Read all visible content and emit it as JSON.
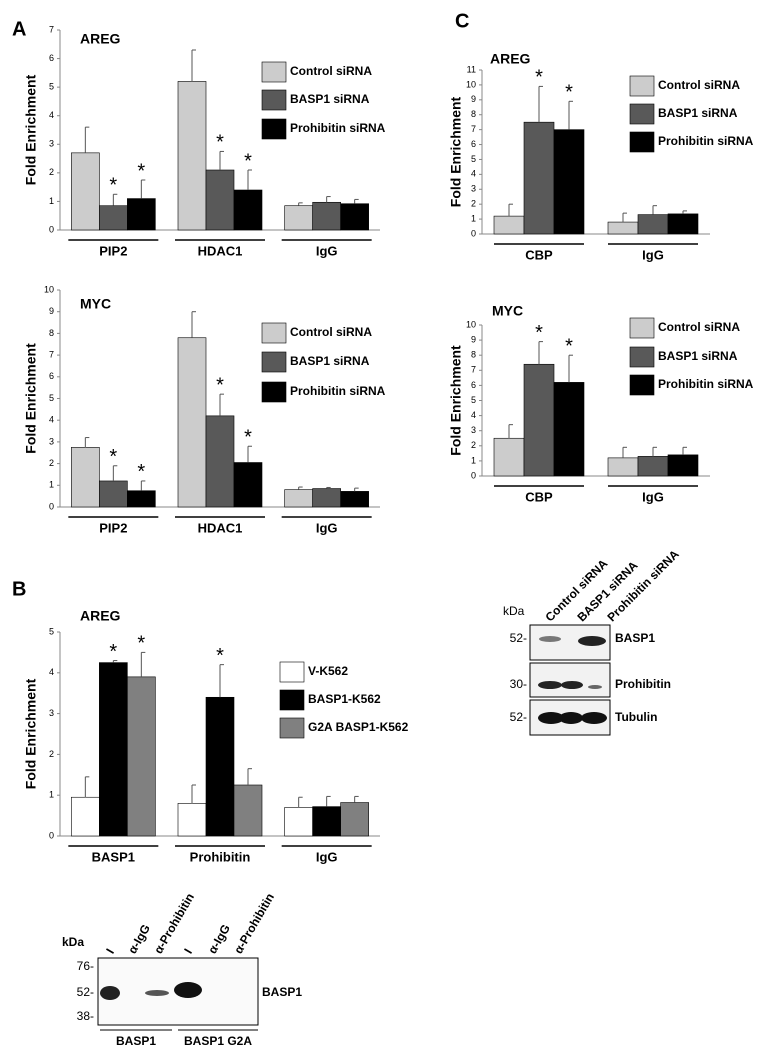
{
  "panels": [
    "A",
    "B",
    "C"
  ],
  "chart_data": [
    {
      "type": "bar",
      "title": "AREG",
      "y_label": "Fold Enrichment",
      "categories": [
        "PIP2",
        "HDAC1",
        "IgG"
      ],
      "series": [
        {
          "name": "Control siRNA",
          "color": "#cccccc",
          "values": [
            2.7,
            5.2,
            0.85
          ],
          "errors": [
            0.9,
            1.1,
            0.1
          ],
          "significance": [
            null,
            null,
            null
          ]
        },
        {
          "name": "BASP1 siRNA",
          "color": "#595959",
          "values": [
            0.85,
            2.1,
            0.97
          ],
          "errors": [
            0.4,
            0.65,
            0.2
          ],
          "significance": [
            "*",
            "*",
            null
          ]
        },
        {
          "name": "Prohibitin siRNA",
          "color": "#000000",
          "values": [
            1.1,
            1.4,
            0.92
          ],
          "errors": [
            0.65,
            0.7,
            0.15
          ],
          "significance": [
            "*",
            "*",
            null
          ]
        }
      ],
      "ylim": [
        0,
        7
      ],
      "yticks": [
        0,
        1,
        2,
        3,
        4,
        5,
        6,
        7
      ]
    },
    {
      "type": "bar",
      "title": "MYC",
      "y_label": "Fold Enrichment",
      "categories": [
        "PIP2",
        "HDAC1",
        "IgG"
      ],
      "series": [
        {
          "name": "Control siRNA",
          "color": "#cccccc",
          "values": [
            2.75,
            7.8,
            0.8
          ],
          "errors": [
            0.45,
            1.2,
            0.12
          ],
          "significance": [
            null,
            null,
            null
          ]
        },
        {
          "name": "BASP1 siRNA",
          "color": "#595959",
          "values": [
            1.2,
            4.2,
            0.85
          ],
          "errors": [
            0.7,
            1.0,
            0.05
          ],
          "significance": [
            "*",
            "*",
            null
          ]
        },
        {
          "name": "Prohibitin siRNA",
          "color": "#000000",
          "values": [
            0.75,
            2.05,
            0.72
          ],
          "errors": [
            0.45,
            0.75,
            0.15
          ],
          "significance": [
            "*",
            "*",
            null
          ]
        }
      ],
      "ylim": [
        0,
        10
      ],
      "yticks": [
        0,
        1,
        2,
        3,
        4,
        5,
        6,
        7,
        8,
        9,
        10
      ]
    },
    {
      "type": "bar",
      "title": "AREG",
      "y_label": "Fold Enrichment",
      "categories": [
        "BASP1",
        "Prohibitin",
        "IgG"
      ],
      "series": [
        {
          "name": "V-K562",
          "color": "#ffffff",
          "values": [
            0.95,
            0.8,
            0.7
          ],
          "errors": [
            0.5,
            0.45,
            0.25
          ],
          "significance": [
            null,
            null,
            null
          ]
        },
        {
          "name": "BASP1-K562",
          "color": "#000000",
          "values": [
            4.25,
            3.4,
            0.72
          ],
          "errors": [
            0.05,
            0.8,
            0.25
          ],
          "significance": [
            "*",
            "*",
            null
          ]
        },
        {
          "name": "G2A BASP1-K562",
          "color": "#808080",
          "values": [
            3.9,
            1.25,
            0.82
          ],
          "errors": [
            0.6,
            0.4,
            0.15
          ],
          "significance": [
            "*",
            null,
            null
          ]
        }
      ],
      "ylim": [
        0,
        5
      ],
      "yticks": [
        0,
        1,
        2,
        3,
        4,
        5
      ]
    },
    {
      "type": "bar",
      "title": "AREG",
      "y_label": "Fold Enrichment",
      "categories": [
        "CBP",
        "IgG"
      ],
      "series": [
        {
          "name": "Control siRNA",
          "color": "#cccccc",
          "values": [
            1.2,
            0.8
          ],
          "errors": [
            0.8,
            0.6
          ],
          "significance": [
            null,
            null
          ]
        },
        {
          "name": "BASP1 siRNA",
          "color": "#595959",
          "values": [
            7.5,
            1.3
          ],
          "errors": [
            2.4,
            0.6
          ],
          "significance": [
            "*",
            null
          ]
        },
        {
          "name": "Prohibitin siRNA",
          "color": "#000000",
          "values": [
            7.0,
            1.35
          ],
          "errors": [
            1.9,
            0.2
          ],
          "significance": [
            "*",
            null
          ]
        }
      ],
      "ylim": [
        0,
        11
      ],
      "yticks": [
        0,
        1,
        2,
        3,
        4,
        5,
        6,
        7,
        8,
        9,
        10,
        11
      ]
    },
    {
      "type": "bar",
      "title": "MYC",
      "y_label": "Fold Enrichment",
      "categories": [
        "CBP",
        "IgG"
      ],
      "series": [
        {
          "name": "Control siRNA",
          "color": "#cccccc",
          "values": [
            2.5,
            1.2
          ],
          "errors": [
            0.9,
            0.7
          ],
          "significance": [
            null,
            null
          ]
        },
        {
          "name": "BASP1 siRNA",
          "color": "#595959",
          "values": [
            7.4,
            1.3
          ],
          "errors": [
            1.5,
            0.6
          ],
          "significance": [
            "*",
            null
          ]
        },
        {
          "name": "Prohibitin siRNA",
          "color": "#000000",
          "values": [
            6.2,
            1.4
          ],
          "errors": [
            1.8,
            0.5
          ],
          "significance": [
            "*",
            null
          ]
        }
      ],
      "ylim": [
        0,
        10
      ],
      "yticks": [
        0,
        1,
        2,
        3,
        4,
        5,
        6,
        7,
        8,
        9,
        10
      ]
    }
  ],
  "blot_b": {
    "kda": "kDa",
    "lanes": [
      "I",
      "α-IgG",
      "α-Prohibitin",
      "I",
      "α-IgG",
      "α-Prohibitin"
    ],
    "markers": [
      "76-",
      "52-",
      "38-"
    ],
    "band_label": "BASP1",
    "groups": [
      "BASP1",
      "BASP1 G2A"
    ]
  },
  "blot_c": {
    "kda": "kDa",
    "lanes": [
      "Control siRNA",
      "BASP1 siRNA",
      "Prohibitin siRNA"
    ],
    "rows": [
      {
        "marker": "52-",
        "label": "BASP1"
      },
      {
        "marker": "30-",
        "label": "Prohibitin"
      },
      {
        "marker": "52-",
        "label": "Tubulin"
      }
    ]
  }
}
